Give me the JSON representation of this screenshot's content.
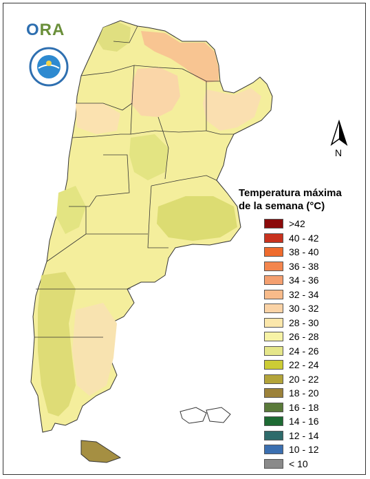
{
  "logo": {
    "text_o": "O",
    "text_rest": "RA",
    "seal_icon": "smn-seal-icon"
  },
  "north_arrow": {
    "label": "N",
    "icon": "north-arrow-icon"
  },
  "legend": {
    "title_line1": "Temperatura máxima",
    "title_line2": "de la semana (°C)",
    "items": [
      {
        "label": ">42",
        "color": "#8b0a0a"
      },
      {
        "label": "40 - 42",
        "color": "#c8321e"
      },
      {
        "label": "38 - 40",
        "color": "#ef6b2d"
      },
      {
        "label": "36 - 38",
        "color": "#f3864e"
      },
      {
        "label": "34 - 36",
        "color": "#f4a070"
      },
      {
        "label": "32 - 34",
        "color": "#f8bb8a"
      },
      {
        "label": "30 - 32",
        "color": "#fad3a6"
      },
      {
        "label": "28 - 30",
        "color": "#fbe7ab"
      },
      {
        "label": "26 - 28",
        "color": "#f7f3a6"
      },
      {
        "label": "24 - 26",
        "color": "#e5e68a"
      },
      {
        "label": "22 - 24",
        "color": "#cccc35"
      },
      {
        "label": "20 - 22",
        "color": "#b3a43a"
      },
      {
        "label": "18 - 20",
        "color": "#9c823a"
      },
      {
        "label": "16 - 18",
        "color": "#5a7a3a"
      },
      {
        "label": "14 - 16",
        "color": "#1d6a33"
      },
      {
        "label": "12 - 14",
        "color": "#2e6b6b"
      },
      {
        "label": "10 - 12",
        "color": "#3b6fb0"
      },
      {
        "label": "< 10",
        "color": "#8a8a8a"
      }
    ]
  }
}
